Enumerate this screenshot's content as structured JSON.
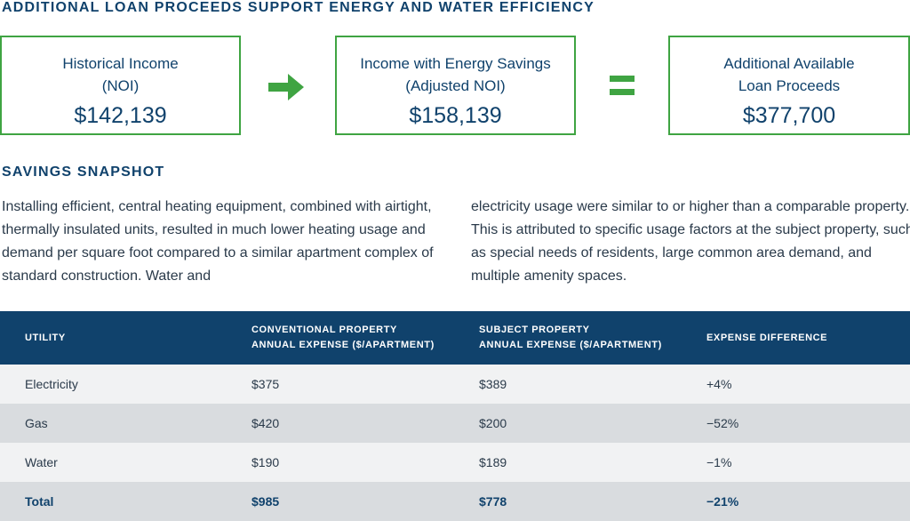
{
  "heading": "ADDITIONAL LOAN PROCEEDS SUPPORT ENERGY AND WATER EFFICIENCY",
  "boxes": [
    {
      "line1": "Historical Income",
      "line2": "(NOI)",
      "value": "$142,139"
    },
    {
      "line1": "Income with Energy Savings",
      "line2": "(Adjusted NOI)",
      "value": "$158,139"
    },
    {
      "line1": "Additional Available",
      "line2": "Loan Proceeds",
      "value": "$377,700"
    }
  ],
  "operators": {
    "arrow": "arrow-right-icon",
    "equals": "equals-icon"
  },
  "colors": {
    "navy": "#10426c",
    "green": "#3fa442",
    "row_light": "#f1f2f3",
    "row_dark": "#d9dcdf"
  },
  "snapshot": {
    "heading": "SAVINGS SNAPSHOT",
    "para_left": "Installing efficient, central heating equipment, combined with airtight, thermally insulated units, resulted in much lower heating usage and demand per square foot compared to a similar apartment complex of standard construction. Water and",
    "para_right": "electricity usage were similar to or higher than a comparable property. This is attributed to specific usage factors at the subject property, such as special needs of residents, large common area demand, and multiple amenity spaces."
  },
  "table": {
    "headers": [
      {
        "line1": "UTILITY",
        "line2": ""
      },
      {
        "line1": "CONVENTIONAL PROPERTY",
        "line2": "ANNUAL EXPENSE ($/APARTMENT)"
      },
      {
        "line1": "SUBJECT PROPERTY",
        "line2": "ANNUAL EXPENSE ($/APARTMENT)"
      },
      {
        "line1": "EXPENSE DIFFERENCE",
        "line2": ""
      }
    ],
    "rows": [
      [
        "Electricity",
        "$375",
        "$389",
        "+4%"
      ],
      [
        "Gas",
        "$420",
        "$200",
        "−52%"
      ],
      [
        "Water",
        "$190",
        "$189",
        "−1%"
      ],
      [
        "Total",
        "$985",
        "$778",
        "−21%"
      ]
    ]
  }
}
